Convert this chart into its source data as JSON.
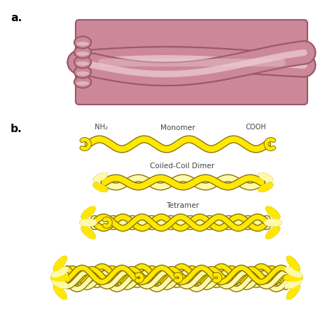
{
  "background_color": "#ffffff",
  "label_a": "a.",
  "label_b": "b.",
  "monomer_label": "Monomer",
  "nh2_label": "NH₂",
  "cooh_label": "COOH",
  "dimer_label": "Coiled-Coil Dimer",
  "tetramer_label": "Tetramer",
  "yellow_fill": "#FFE800",
  "yellow_edge": "#8B7500",
  "yellow_light": "#FFFAAA",
  "pink_fill": "#CC8899",
  "pink_mid": "#C47A8A",
  "pink_light": "#E8B8C8",
  "pink_edge": "#9A5A6A",
  "pink_highlight": "#EED0DA",
  "label_font_size": 11,
  "anno_font_size": 7
}
